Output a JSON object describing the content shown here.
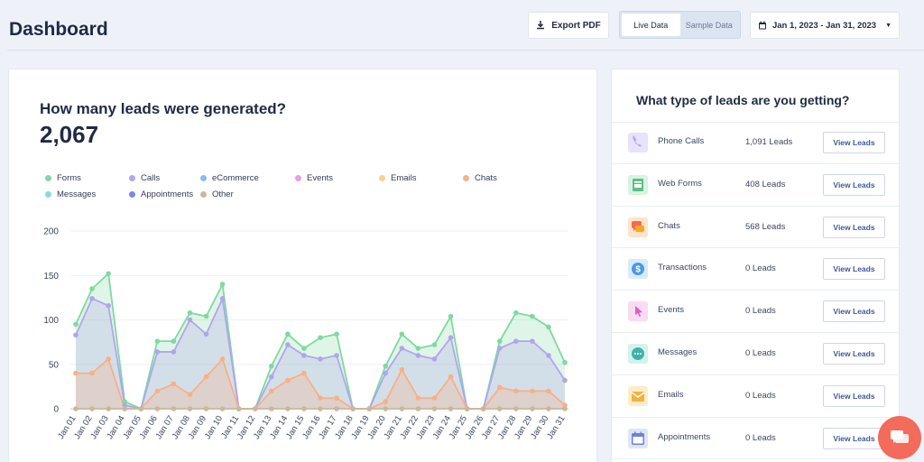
{
  "header": {
    "title": "Dashboard",
    "export_label": "Export PDF",
    "data_toggle": {
      "live_label": "Live Data",
      "sample_label": "Sample Data",
      "selected": "Live Data"
    },
    "date_range": "Jan 1, 2023 - Jan 31, 2023"
  },
  "leads_card": {
    "question": "How many leads were generated?",
    "total": "2,067"
  },
  "legend": [
    {
      "label": "Forms",
      "color": "#7fd9a0"
    },
    {
      "label": "Calls",
      "color": "#b3a4ee"
    },
    {
      "label": "eCommerce",
      "color": "#84bff0"
    },
    {
      "label": "Events",
      "color": "#eb9ee8"
    },
    {
      "label": "Emails",
      "color": "#fbd08a"
    },
    {
      "label": "Chats",
      "color": "#f8b088"
    },
    {
      "label": "Messages",
      "color": "#8adbd2"
    },
    {
      "label": "Appointments",
      "color": "#7a8ae0"
    },
    {
      "label": "Other",
      "color": "#c9b89c"
    }
  ],
  "chart_data": {
    "type": "area",
    "ylim": [
      0,
      200
    ],
    "yticks": [
      "200",
      "150",
      "100",
      "50",
      "0"
    ],
    "categories": [
      "Jan 01",
      "Jan 02",
      "Jan 03",
      "Jan 04",
      "Jan 05",
      "Jan 06",
      "Jan 07",
      "Jan 08",
      "Jan 09",
      "Jan 10",
      "Jan 11",
      "Jan 12",
      "Jan 13",
      "Jan 14",
      "Jan 15",
      "Jan 16",
      "Jan 17",
      "Jan 18",
      "Jan 19",
      "Jan 20",
      "Jan 21",
      "Jan 22",
      "Jan 23",
      "Jan 24",
      "Jan 25",
      "Jan 26",
      "Jan 27",
      "Jan 28",
      "Jan 29",
      "Jan 30",
      "Jan 31"
    ],
    "series": [
      {
        "name": "Forms",
        "color": "#7fd9a0",
        "values": [
          95,
          135,
          152,
          8,
          0,
          76,
          76,
          108,
          104,
          140,
          0,
          0,
          48,
          84,
          68,
          80,
          84,
          0,
          0,
          48,
          84,
          68,
          72,
          104,
          0,
          0,
          76,
          108,
          104,
          92,
          52
        ]
      },
      {
        "name": "Calls",
        "color": "#b3a4ee",
        "values": [
          83,
          124,
          116,
          4,
          0,
          64,
          64,
          100,
          84,
          124,
          0,
          0,
          36,
          72,
          60,
          56,
          60,
          0,
          0,
          40,
          68,
          60,
          56,
          80,
          0,
          0,
          68,
          76,
          76,
          60,
          32
        ]
      },
      {
        "name": "Chats",
        "color": "#f8b088",
        "values": [
          40,
          40,
          56,
          0,
          0,
          20,
          28,
          16,
          36,
          56,
          0,
          0,
          20,
          32,
          40,
          12,
          12,
          0,
          0,
          8,
          44,
          12,
          12,
          36,
          0,
          0,
          24,
          20,
          20,
          20,
          4
        ]
      },
      {
        "name": "Other",
        "color": "#c9b89c",
        "values": [
          0,
          0,
          0,
          0,
          0,
          0,
          0,
          0,
          0,
          0,
          0,
          0,
          0,
          0,
          0,
          0,
          0,
          0,
          0,
          0,
          0,
          0,
          0,
          0,
          0,
          0,
          0,
          0,
          0,
          0,
          0
        ]
      }
    ]
  },
  "lead_types": {
    "title": "What type of leads are you getting?",
    "button_label": "View Leads",
    "rows": [
      {
        "name": "Phone Calls",
        "count": "1,091 Leads",
        "icon": "phone-icon",
        "color": "#b3a4ee",
        "bg": "#e8e2fb"
      },
      {
        "name": "Web Forms",
        "count": "408 Leads",
        "icon": "form-icon",
        "color": "#5fbf85",
        "bg": "#d8f3e2"
      },
      {
        "name": "Chats",
        "count": "568 Leads",
        "icon": "chat-icon",
        "color": "#f26b4f",
        "bg": "#fde4c9"
      },
      {
        "name": "Transactions",
        "count": "0 Leads",
        "icon": "dollar-icon",
        "color": "#4a9be0",
        "bg": "#d8ebfa"
      },
      {
        "name": "Events",
        "count": "0 Leads",
        "icon": "cursor-icon",
        "color": "#e35bc9",
        "bg": "#f9dcf2"
      },
      {
        "name": "Messages",
        "count": "0 Leads",
        "icon": "message-icon",
        "color": "#3fb3a8",
        "bg": "#d4f1ee"
      },
      {
        "name": "Emails",
        "count": "0 Leads",
        "icon": "mail-icon",
        "color": "#f2b33d",
        "bg": "#fdedc6"
      },
      {
        "name": "Appointments",
        "count": "0 Leads",
        "icon": "calendar-icon",
        "color": "#6f83d6",
        "bg": "#dfe5f8"
      }
    ]
  }
}
